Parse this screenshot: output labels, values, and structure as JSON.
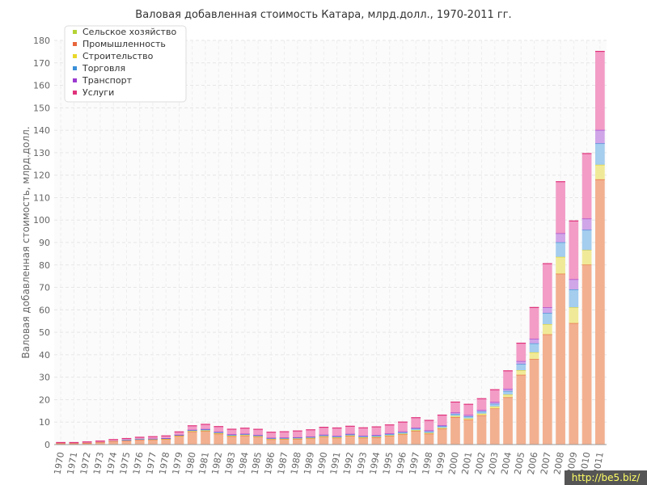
{
  "chart_data": {
    "type": "bar",
    "stacked": true,
    "title": "Валовая добавленная стоимость Катара, млрд.долл., 1970-2011 гг.",
    "xlabel": "",
    "ylabel": "Валовая добавленная стоимость, млрд.долл.",
    "ylim": [
      0,
      180
    ],
    "yticks": [
      0,
      10,
      20,
      30,
      40,
      50,
      60,
      70,
      80,
      90,
      100,
      110,
      120,
      130,
      140,
      150,
      160,
      170,
      180
    ],
    "grid": true,
    "legend_position": "top-left",
    "categories": [
      "1970",
      "1971",
      "1972",
      "1973",
      "1974",
      "1975",
      "1976",
      "1977",
      "1978",
      "1979",
      "1980",
      "1981",
      "1982",
      "1983",
      "1984",
      "1985",
      "1986",
      "1987",
      "1988",
      "1989",
      "1990",
      "1991",
      "1992",
      "1993",
      "1994",
      "1995",
      "1996",
      "1997",
      "1998",
      "1999",
      "2000",
      "2001",
      "2002",
      "2003",
      "2004",
      "2005",
      "2006",
      "2007",
      "2008",
      "2009",
      "2010",
      "2011"
    ],
    "series": [
      {
        "name": "Сельское хозяйство",
        "color": "#b5d334",
        "fill": "#d6e89a",
        "values": [
          0.01,
          0.01,
          0.01,
          0.01,
          0.01,
          0.01,
          0.01,
          0.01,
          0.01,
          0.01,
          0.02,
          0.02,
          0.02,
          0.02,
          0.02,
          0.02,
          0.02,
          0.02,
          0.02,
          0.02,
          0.02,
          0.02,
          0.02,
          0.02,
          0.02,
          0.02,
          0.03,
          0.03,
          0.03,
          0.03,
          0.04,
          0.04,
          0.04,
          0.04,
          0.05,
          0.06,
          0.07,
          0.08,
          0.09,
          0.1,
          0.11,
          0.12
        ]
      },
      {
        "name": "Промышленность",
        "color": "#e8663c",
        "fill": "#f2b090",
        "values": [
          0.5,
          0.5,
          0.7,
          1.0,
          1.5,
          1.8,
          2.2,
          2.2,
          2.4,
          3.8,
          5.8,
          6.0,
          4.8,
          3.7,
          4.0,
          3.5,
          2.3,
          2.4,
          2.5,
          2.8,
          3.5,
          3.0,
          3.8,
          3.0,
          3.2,
          3.8,
          4.5,
          6.0,
          4.8,
          7.0,
          12.2,
          11.0,
          13.0,
          16.0,
          21.0,
          31.0,
          38.0,
          49.0,
          76.0,
          54.0,
          80.0,
          118.0
        ]
      },
      {
        "name": "Строительство",
        "color": "#e8d82a",
        "fill": "#f0ea98",
        "values": [
          0.03,
          0.03,
          0.04,
          0.05,
          0.06,
          0.08,
          0.1,
          0.12,
          0.14,
          0.15,
          0.2,
          0.25,
          0.25,
          0.22,
          0.2,
          0.18,
          0.15,
          0.15,
          0.15,
          0.16,
          0.18,
          0.18,
          0.2,
          0.2,
          0.22,
          0.25,
          0.3,
          0.35,
          0.35,
          0.4,
          0.5,
          0.6,
          0.7,
          0.9,
          1.2,
          2.0,
          3.0,
          4.5,
          7.5,
          7.0,
          6.5,
          6.5
        ]
      },
      {
        "name": "Торговля",
        "color": "#3a8fd8",
        "fill": "#a4cdee",
        "values": [
          0.05,
          0.05,
          0.06,
          0.07,
          0.1,
          0.12,
          0.15,
          0.18,
          0.2,
          0.25,
          0.35,
          0.4,
          0.4,
          0.35,
          0.35,
          0.35,
          0.3,
          0.3,
          0.35,
          0.35,
          0.4,
          0.4,
          0.45,
          0.45,
          0.5,
          0.55,
          0.6,
          0.65,
          0.65,
          0.7,
          0.9,
          0.9,
          1.0,
          1.2,
          1.6,
          2.8,
          4.0,
          5.0,
          6.5,
          8.0,
          9.0,
          9.5
        ]
      },
      {
        "name": "Транспорт",
        "color": "#9b3ad0",
        "fill": "#d0a6e8",
        "values": [
          0.03,
          0.03,
          0.04,
          0.05,
          0.06,
          0.08,
          0.1,
          0.12,
          0.13,
          0.15,
          0.2,
          0.25,
          0.25,
          0.25,
          0.25,
          0.25,
          0.25,
          0.25,
          0.25,
          0.25,
          0.3,
          0.3,
          0.3,
          0.3,
          0.35,
          0.35,
          0.4,
          0.45,
          0.45,
          0.5,
          0.6,
          0.6,
          0.7,
          0.8,
          1.0,
          1.3,
          2.0,
          2.5,
          4.0,
          4.5,
          5.0,
          6.0
        ]
      },
      {
        "name": "Услуги",
        "color": "#e0327a",
        "fill": "#f29cc6",
        "values": [
          0.3,
          0.3,
          0.35,
          0.4,
          0.5,
          0.6,
          0.7,
          0.9,
          1.0,
          1.3,
          1.8,
          2.1,
          2.3,
          2.3,
          2.5,
          2.5,
          2.5,
          2.6,
          2.8,
          3.0,
          3.3,
          3.5,
          3.4,
          3.5,
          3.6,
          3.8,
          4.2,
          4.5,
          4.5,
          4.5,
          4.7,
          4.8,
          5.0,
          5.5,
          8.0,
          8.0,
          14.0,
          19.5,
          23.0,
          26.0,
          29.0,
          35.0
        ]
      }
    ]
  },
  "watermark": "http://be5.biz/"
}
